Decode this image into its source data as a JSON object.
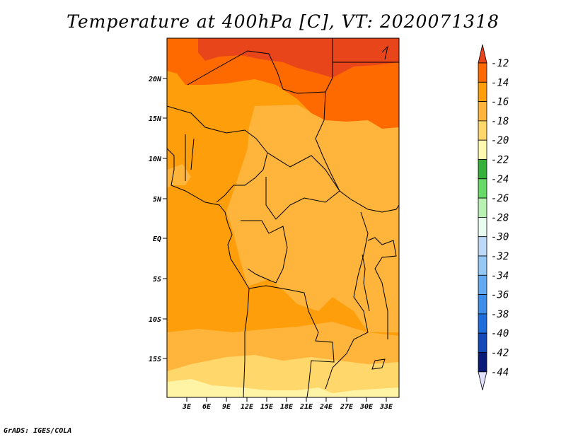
{
  "title": "Temperature at 400hPa [C], VT: 2020071318",
  "credit": "GrADS: IGES/COLA",
  "map": {
    "lat_labels": [
      "20N",
      "15N",
      "10N",
      "5N",
      "EQ",
      "5S",
      "10S",
      "15S"
    ],
    "lon_labels": [
      "3E",
      "6E",
      "9E",
      "12E",
      "15E",
      "18E",
      "21E",
      "24E",
      "27E",
      "30E",
      "33E"
    ]
  },
  "colorbar": {
    "labels": [
      "-12",
      "-14",
      "-16",
      "-18",
      "-20",
      "-22",
      "-24",
      "-26",
      "-28",
      "-30",
      "-32",
      "-34",
      "-36",
      "-38",
      "-40",
      "-42",
      "-44"
    ],
    "colors": [
      "#e8451a",
      "#ff6a00",
      "#ff9e0b",
      "#ffb43c",
      "#ffd76b",
      "#fff8b0",
      "#35b03a",
      "#66d967",
      "#b9f1b2",
      "#e8fcf0",
      "#bcdaf8",
      "#96c8f5",
      "#63aaf0",
      "#3e8ee8",
      "#1f6ddd",
      "#1349b8",
      "#0a1a78"
    ],
    "top_arrow_color": "#e8451a",
    "bottom_arrow_color": "#e2e0ff"
  }
}
